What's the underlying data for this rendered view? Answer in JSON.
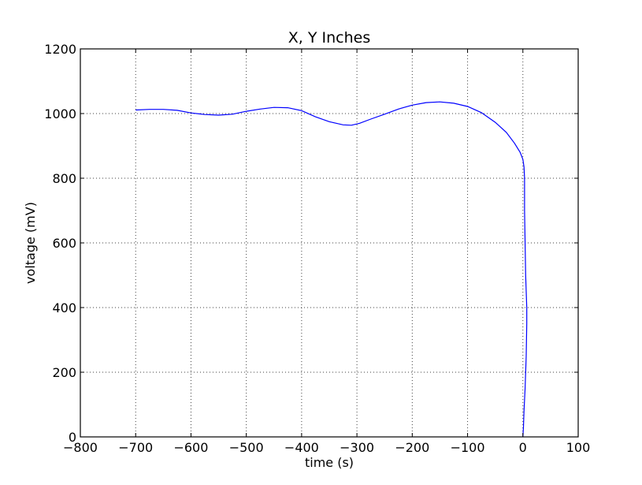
{
  "chart_data": {
    "type": "line",
    "title": "X, Y Inches",
    "xlabel": "time (s)",
    "ylabel": "voltage (mV)",
    "xlim": [
      -800,
      100
    ],
    "ylim": [
      0,
      1200
    ],
    "xticks": [
      -800,
      -700,
      -600,
      -500,
      -400,
      -300,
      -200,
      -100,
      0,
      100
    ],
    "yticks": [
      0,
      200,
      400,
      600,
      800,
      1000,
      1200
    ],
    "xtick_labels": [
      "−800",
      "−700",
      "−600",
      "−500",
      "−400",
      "−300",
      "−200",
      "−100",
      "0",
      "100"
    ],
    "ytick_labels": [
      "0",
      "200",
      "400",
      "600",
      "800",
      "1000",
      "1200"
    ],
    "grid": true,
    "series": [
      {
        "color": "#0000ff",
        "x": [
          -700,
          -675,
          -650,
          -625,
          -600,
          -575,
          -550,
          -525,
          -500,
          -475,
          -450,
          -425,
          -400,
          -375,
          -350,
          -325,
          -310,
          -295,
          -275,
          -250,
          -225,
          -200,
          -175,
          -150,
          -125,
          -100,
          -75,
          -50,
          -30,
          -15,
          -5,
          0,
          2,
          3,
          3,
          4,
          5,
          6,
          7,
          7,
          6,
          4,
          2,
          1,
          0
        ],
        "y": [
          1011,
          1013,
          1013,
          1010,
          1002,
          997,
          995,
          998,
          1007,
          1014,
          1019,
          1018,
          1009,
          990,
          975,
          965,
          964,
          970,
          983,
          998,
          1014,
          1026,
          1034,
          1036,
          1032,
          1022,
          1003,
          973,
          942,
          908,
          880,
          858,
          835,
          800,
          700,
          600,
          500,
          450,
          400,
          350,
          250,
          150,
          80,
          30,
          0
        ]
      }
    ]
  }
}
